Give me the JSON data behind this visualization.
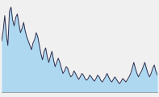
{
  "y_values": [
    60,
    72,
    90,
    68,
    55,
    95,
    100,
    85,
    78,
    88,
    92,
    80,
    70,
    75,
    82,
    72,
    65,
    60,
    55,
    50,
    58,
    62,
    70,
    65,
    55,
    45,
    38,
    48,
    52,
    42,
    35,
    42,
    48,
    38,
    30,
    35,
    40,
    35,
    28,
    22,
    25,
    30,
    28,
    22,
    18,
    20,
    25,
    22,
    18,
    15,
    18,
    22,
    20,
    16,
    14,
    16,
    20,
    18,
    15,
    13,
    16,
    20,
    18,
    14,
    12,
    15,
    18,
    22,
    18,
    14,
    12,
    15,
    18,
    15,
    12,
    10,
    13,
    16,
    14,
    12,
    15,
    18,
    22,
    28,
    35,
    28,
    22,
    18,
    22,
    25,
    30,
    35,
    28,
    22,
    18,
    22,
    28,
    32,
    25,
    20
  ],
  "fill_color": "#add8f0",
  "line_color": "#2c2c4e",
  "background_color": "#f0f0f0",
  "grid_color": "#b0b0b0",
  "ylim": [
    0,
    105
  ],
  "line_width": 0.7,
  "dpi": 100,
  "figsize": [
    1.97,
    1.21
  ]
}
